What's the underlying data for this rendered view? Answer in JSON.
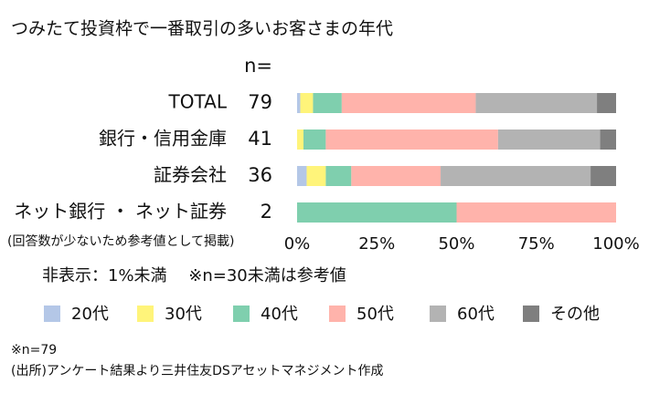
{
  "chart_data": {
    "type": "bar",
    "orientation": "horizontal",
    "stacked": true,
    "title": "つみたて投資枠で一番取引の多いお客さまの年代",
    "categories": [
      "TOTAL",
      "銀行・信用金庫",
      "証券会社",
      "ネット銀行 ・ ネット証券"
    ],
    "n_label": "n=",
    "n": [
      79,
      41,
      36,
      2
    ],
    "series": [
      {
        "name": "20代",
        "color": "#b4c7e7",
        "values": [
          1,
          0,
          3,
          0
        ]
      },
      {
        "name": "30代",
        "color": "#fff47a",
        "values": [
          4,
          2,
          6,
          0
        ]
      },
      {
        "name": "40代",
        "color": "#7fcfae",
        "values": [
          9,
          7,
          8,
          50
        ]
      },
      {
        "name": "50代",
        "color": "#ffb3ab",
        "values": [
          42,
          54,
          28,
          50
        ]
      },
      {
        "name": "60代",
        "color": "#b3b3b3",
        "values": [
          38,
          32,
          47,
          0
        ]
      },
      {
        "name": "その他",
        "color": "#7f7f7f",
        "values": [
          6,
          5,
          8,
          0
        ]
      }
    ],
    "xlim": [
      0,
      100
    ],
    "xticks": [
      {
        "value": 0,
        "label": "0%"
      },
      {
        "value": 25,
        "label": "25%"
      },
      {
        "value": 50,
        "label": "50%"
      },
      {
        "value": 75,
        "label": "75%"
      },
      {
        "value": 100,
        "label": "100%"
      }
    ],
    "grid": false,
    "legend": "bottom",
    "annotations": [
      "(回答数が少ないため参考値として掲載)",
      "非表示：1%未満　 ※n=30未満は参考値",
      "※n=79",
      "(出所)アンケート結果より三井住友DSアセットマネジメント作成"
    ]
  }
}
